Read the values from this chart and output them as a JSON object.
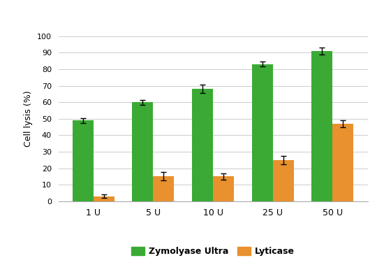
{
  "categories": [
    "1 U",
    "5 U",
    "10 U",
    "25 U",
    "50 U"
  ],
  "zymolyase_values": [
    49,
    60,
    68,
    83,
    91
  ],
  "zymolyase_errors": [
    1.5,
    1.5,
    2.5,
    1.5,
    2.0
  ],
  "lyticase_values": [
    3,
    15,
    15,
    25,
    47
  ],
  "lyticase_errors": [
    1.0,
    2.5,
    2.0,
    2.5,
    2.0
  ],
  "zymolyase_color": "#3aaa35",
  "lyticase_color": "#e8912e",
  "ylabel": "Cell lysis (%)",
  "ylim": [
    0,
    100
  ],
  "yticks": [
    0,
    10,
    20,
    30,
    40,
    50,
    60,
    70,
    80,
    90,
    100
  ],
  "legend_labels": [
    "Zymolyase Ultra",
    "Lyticase"
  ],
  "title_bg_color": "#3a3f4a",
  "bar_width": 0.35,
  "figure_bg": "#ffffff",
  "axes_bg": "#ffffff",
  "grid_color": "#cccccc",
  "legend_bold": true
}
